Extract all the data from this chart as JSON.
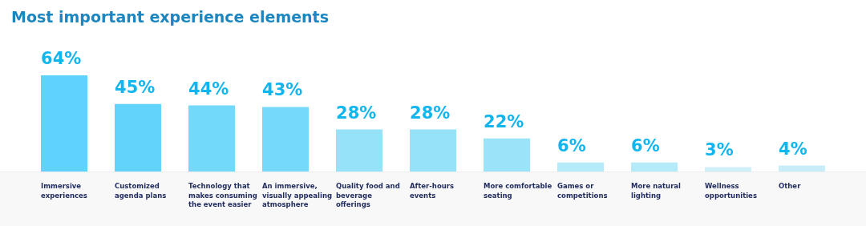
{
  "chart_data": {
    "type": "bar",
    "title": "Most important experience elements",
    "categories": [
      "Immersive experiences",
      "Customized agenda plans",
      "Technology that makes consuming the event easier",
      "An immersive, visually appealing atmosphere",
      "Quality food and beverage offerings",
      "After-hours events",
      "More comfortable seating",
      "Games or competitions",
      "More natural lighting",
      "Wellness opportunities",
      "Other"
    ],
    "values": [
      64,
      45,
      44,
      43,
      28,
      28,
      22,
      6,
      6,
      3,
      4
    ],
    "value_labels": [
      "64%",
      "45%",
      "44%",
      "43%",
      "28%",
      "28%",
      "22%",
      "6%",
      "6%",
      "3%",
      "4%"
    ],
    "colors": [
      "#5fd3fb",
      "#62d4fb",
      "#72d9fb",
      "#74d9fb",
      "#95e2f9",
      "#95e2f9",
      "#9be3f9",
      "#b5eaf8",
      "#b5eaf8",
      "#cfeff8",
      "#c8edf8"
    ],
    "ylim": [
      0,
      64
    ]
  }
}
